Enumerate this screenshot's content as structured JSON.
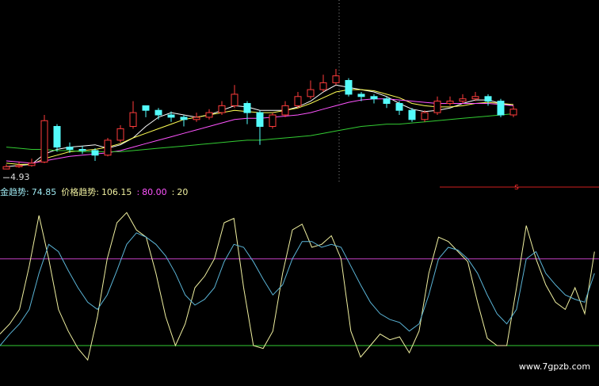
{
  "chart_data": [
    {
      "type": "candlestick",
      "open": [
        4.93,
        4.95,
        4.96,
        4.99,
        5.3,
        5.12,
        5.1,
        5.09,
        5.05,
        5.18,
        5.3,
        5.48,
        5.44,
        5.4,
        5.38,
        5.36,
        5.38,
        5.42,
        5.48,
        5.5,
        5.42,
        5.3,
        5.4,
        5.48,
        5.56,
        5.62,
        5.68,
        5.7,
        5.58,
        5.56,
        5.54,
        5.5,
        5.44,
        5.36,
        5.42,
        5.5,
        5.52,
        5.54,
        5.56,
        5.52,
        5.4
      ],
      "high": [
        4.97,
        4.99,
        5.02,
        5.4,
        5.32,
        5.16,
        5.13,
        5.11,
        5.2,
        5.31,
        5.52,
        5.48,
        5.46,
        5.43,
        5.4,
        5.42,
        5.45,
        5.52,
        5.66,
        5.52,
        5.44,
        5.42,
        5.52,
        5.6,
        5.7,
        5.75,
        5.8,
        5.72,
        5.6,
        5.58,
        5.56,
        5.52,
        5.46,
        5.44,
        5.56,
        5.56,
        5.58,
        5.6,
        5.58,
        5.54,
        5.48
      ],
      "low": [
        4.93,
        4.94,
        4.95,
        4.98,
        5.08,
        5.07,
        5.06,
        5.0,
        5.04,
        5.16,
        5.28,
        5.38,
        5.36,
        5.34,
        5.3,
        5.34,
        5.36,
        5.4,
        5.46,
        5.32,
        5.14,
        5.28,
        5.38,
        5.46,
        5.54,
        5.6,
        5.66,
        5.56,
        5.52,
        5.5,
        5.46,
        5.4,
        5.34,
        5.34,
        5.4,
        5.48,
        5.5,
        5.52,
        5.48,
        5.38,
        5.38
      ],
      "close": [
        4.95,
        4.96,
        4.98,
        5.35,
        5.12,
        5.1,
        5.09,
        5.05,
        5.18,
        5.28,
        5.42,
        5.44,
        5.4,
        5.38,
        5.36,
        5.38,
        5.42,
        5.48,
        5.58,
        5.42,
        5.3,
        5.4,
        5.48,
        5.56,
        5.62,
        5.68,
        5.74,
        5.58,
        5.56,
        5.54,
        5.5,
        5.44,
        5.36,
        5.42,
        5.52,
        5.52,
        5.54,
        5.56,
        5.52,
        5.4,
        5.45
      ],
      "up_color": "#ff3c3c",
      "down_color": "#54fcfc",
      "series": [
        {
          "color": "#ffffff",
          "values": [
            4.95,
            4.96,
            4.97,
            5.06,
            5.1,
            5.12,
            5.13,
            5.14,
            5.11,
            5.14,
            5.2,
            5.3,
            5.38,
            5.42,
            5.4,
            5.38,
            5.4,
            5.44,
            5.48,
            5.47,
            5.44,
            5.44,
            5.44,
            5.47,
            5.52,
            5.6,
            5.66,
            5.64,
            5.62,
            5.6,
            5.56,
            5.5,
            5.45,
            5.43,
            5.44,
            5.46,
            5.5,
            5.53,
            5.53,
            5.5,
            5.48
          ]
        },
        {
          "color": "#ffff54",
          "values": [
            4.98,
            4.97,
            4.97,
            5.02,
            5.05,
            5.08,
            5.09,
            5.1,
            5.12,
            5.15,
            5.2,
            5.24,
            5.28,
            5.32,
            5.36,
            5.38,
            5.4,
            5.42,
            5.44,
            5.43,
            5.42,
            5.42,
            5.44,
            5.46,
            5.5,
            5.55,
            5.6,
            5.62,
            5.62,
            5.61,
            5.58,
            5.55,
            5.5,
            5.48,
            5.47,
            5.47,
            5.48,
            5.5,
            5.51,
            5.5,
            5.49
          ]
        },
        {
          "color": "#ff54ff",
          "values": [
            5.0,
            4.99,
            4.98,
            5.0,
            5.02,
            5.04,
            5.05,
            5.06,
            5.07,
            5.09,
            5.12,
            5.15,
            5.18,
            5.21,
            5.24,
            5.27,
            5.3,
            5.33,
            5.36,
            5.37,
            5.37,
            5.38,
            5.39,
            5.4,
            5.42,
            5.45,
            5.48,
            5.51,
            5.53,
            5.54,
            5.54,
            5.53,
            5.52,
            5.51,
            5.5,
            5.5,
            5.5,
            5.5,
            5.5,
            5.49,
            5.48
          ]
        },
        {
          "color": "#33cc33",
          "values": [
            5.12,
            5.11,
            5.1,
            5.1,
            5.09,
            5.09,
            5.08,
            5.08,
            5.08,
            5.08,
            5.09,
            5.1,
            5.11,
            5.12,
            5.13,
            5.14,
            5.15,
            5.16,
            5.17,
            5.18,
            5.18,
            5.19,
            5.2,
            5.21,
            5.22,
            5.24,
            5.26,
            5.28,
            5.3,
            5.31,
            5.32,
            5.32,
            5.33,
            5.34,
            5.35,
            5.36,
            5.37,
            5.38,
            5.39,
            5.4,
            5.41
          ]
        }
      ],
      "ylim": [
        4.8,
        6.4
      ],
      "low_label": 4.93,
      "signal": "s"
    },
    {
      "type": "line",
      "readouts": [
        {
          "label": "金趋势:",
          "value": "74.85",
          "color": "#9ee8f0"
        },
        {
          "label": "价格趋势:",
          "value": "106.15",
          "color": "#f0f0a0"
        },
        {
          "label": ":",
          "value": "80.00",
          "color": "#ff54ff"
        },
        {
          "label": ":",
          "value": "20",
          "color": "#f0f0a0"
        }
      ],
      "series": [
        {
          "color": "#f0f0a0",
          "values": [
            28,
            35,
            45,
            75,
            110,
            80,
            45,
            30,
            18,
            10,
            40,
            80,
            105,
            112,
            100,
            95,
            70,
            40,
            20,
            35,
            60,
            68,
            80,
            105,
            108,
            60,
            20,
            18,
            30,
            70,
            100,
            104,
            88,
            90,
            96,
            80,
            30,
            12,
            20,
            28,
            24,
            26,
            15,
            30,
            70,
            95,
            92,
            85,
            78,
            50,
            25,
            20,
            20,
            60,
            103,
            80,
            62,
            50,
            45,
            60,
            42,
            85
          ]
        },
        {
          "color": "#5ab4d6",
          "values": [
            20,
            28,
            35,
            45,
            70,
            90,
            85,
            72,
            60,
            50,
            45,
            55,
            72,
            90,
            98,
            95,
            90,
            82,
            70,
            55,
            48,
            52,
            60,
            78,
            90,
            88,
            78,
            66,
            55,
            62,
            80,
            92,
            92,
            88,
            90,
            88,
            75,
            62,
            50,
            42,
            38,
            36,
            30,
            35,
            55,
            80,
            88,
            86,
            80,
            70,
            55,
            42,
            35,
            45,
            80,
            85,
            70,
            62,
            55,
            52,
            50,
            70
          ]
        }
      ],
      "hlines": [
        {
          "value": 80,
          "color": "#c040c0"
        },
        {
          "value": 20,
          "color": "#33cc33"
        }
      ],
      "ylim": [
        -8,
        122
      ]
    }
  ],
  "watermark": "www.7gpzb.com"
}
